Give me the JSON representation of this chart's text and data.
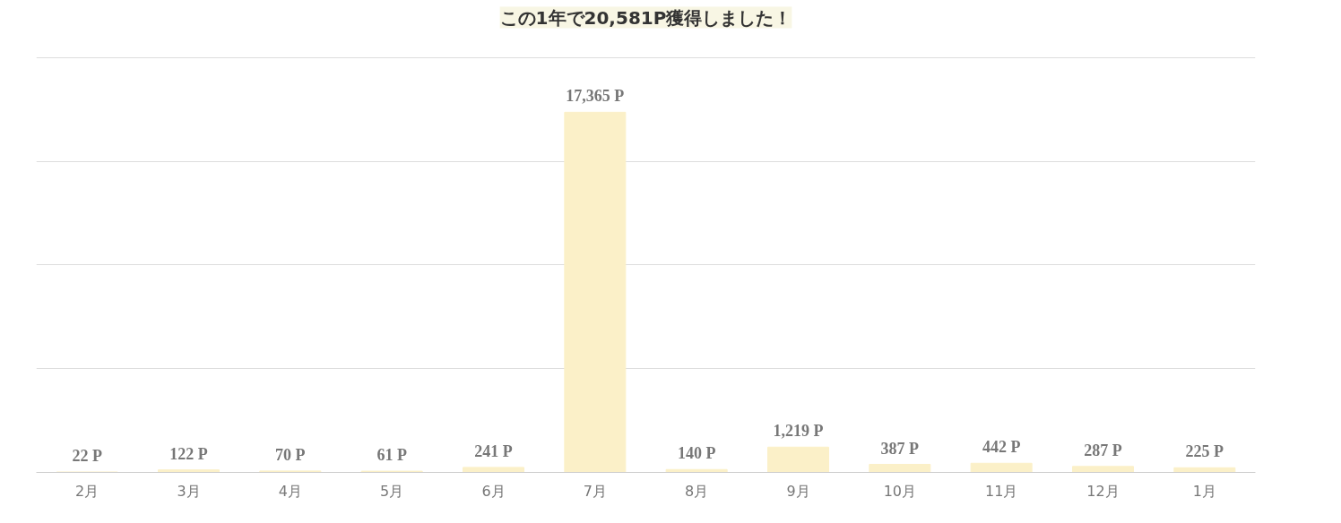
{
  "chart_data": {
    "type": "bar",
    "title": "この1年で20,581P獲得しました！",
    "categories": [
      "2月",
      "3月",
      "4月",
      "5月",
      "6月",
      "7月",
      "8月",
      "9月",
      "10月",
      "11月",
      "12月",
      "1月"
    ],
    "values": [
      22,
      122,
      70,
      61,
      241,
      17365,
      140,
      1219,
      387,
      442,
      287,
      225
    ],
    "value_labels": [
      "22 P",
      "122 P",
      "70 P",
      "61 P",
      "241 P",
      "17,365 P",
      "140 P",
      "1,219 P",
      "387 P",
      "442 P",
      "287 P",
      "225 P"
    ],
    "color": "#fbf0c8",
    "ylim": [
      0,
      20000
    ],
    "yticks": [
      {
        "value": 0,
        "label": null
      },
      {
        "value": 5000,
        "label": null
      },
      {
        "value": 10000,
        "label": null
      },
      {
        "value": 15000,
        "label": null
      },
      {
        "value": 20000,
        "label": null
      }
    ],
    "tick_labels": "x",
    "grid": "y"
  }
}
